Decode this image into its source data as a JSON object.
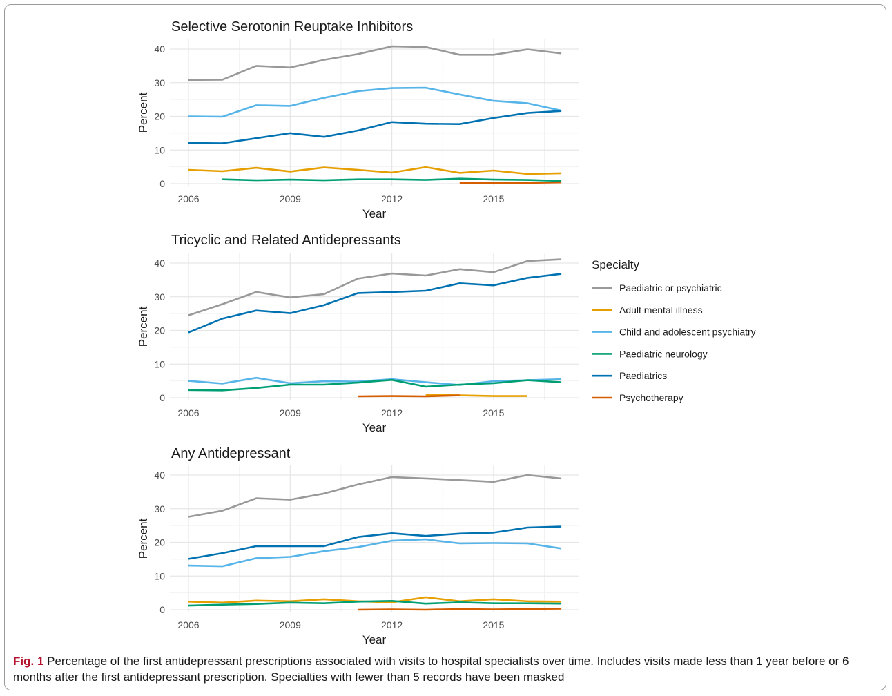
{
  "chart_data": [
    {
      "type": "line",
      "title": "Selective Serotonin Reuptake Inhibitors",
      "xlabel": "Year",
      "ylabel": "Percent",
      "xlim": [
        2006,
        2017
      ],
      "ylim": [
        0,
        40
      ],
      "x_ticks": [
        "2006",
        "2009",
        "2012",
        "2015"
      ],
      "y_ticks": [
        "0",
        "10",
        "20",
        "30",
        "40"
      ],
      "grid": true,
      "series": [
        {
          "name": "Paediatric or psychiatric",
          "x": [
            2006,
            2007,
            2008,
            2009,
            2010,
            2011,
            2012,
            2013,
            2014,
            2015,
            2016,
            2017
          ],
          "values": [
            30.8,
            30.9,
            35.0,
            34.5,
            36.8,
            38.5,
            40.8,
            40.6,
            38.3,
            38.3,
            39.9,
            38.7
          ]
        },
        {
          "name": "Adult mental illness",
          "x": [
            2006,
            2007,
            2008,
            2009,
            2010,
            2011,
            2012,
            2013,
            2014,
            2015,
            2016,
            2017
          ],
          "values": [
            4.1,
            3.7,
            4.7,
            3.6,
            4.8,
            4.1,
            3.3,
            4.9,
            3.2,
            3.9,
            2.9,
            3.1
          ]
        },
        {
          "name": "Child and adolescent psychiatry",
          "x": [
            2006,
            2007,
            2008,
            2009,
            2010,
            2011,
            2012,
            2013,
            2014,
            2015,
            2016,
            2017
          ],
          "values": [
            20.0,
            19.9,
            23.3,
            23.1,
            25.5,
            27.5,
            28.4,
            28.5,
            26.5,
            24.6,
            23.9,
            21.7
          ]
        },
        {
          "name": "Paediatric neurology",
          "x": [
            2007,
            2008,
            2009,
            2010,
            2011,
            2012,
            2013,
            2014,
            2015,
            2016,
            2017
          ],
          "values": [
            1.3,
            1.0,
            1.2,
            1.0,
            1.3,
            1.3,
            1.1,
            1.5,
            1.2,
            1.1,
            0.8
          ]
        },
        {
          "name": "Paediatrics",
          "x": [
            2006,
            2007,
            2008,
            2009,
            2010,
            2011,
            2012,
            2013,
            2014,
            2015,
            2016,
            2017
          ],
          "values": [
            12.1,
            12.0,
            13.5,
            15.0,
            13.9,
            15.8,
            18.3,
            17.8,
            17.7,
            19.5,
            21.0,
            21.6
          ]
        },
        {
          "name": "Psychotherapy",
          "x": [
            2014,
            2015,
            2016,
            2017
          ],
          "values": [
            0.2,
            0.2,
            0.2,
            0.4
          ]
        }
      ]
    },
    {
      "type": "line",
      "title": "Tricyclic and Related Antidepressants",
      "xlabel": "Year",
      "ylabel": "Percent",
      "xlim": [
        2006,
        2017
      ],
      "ylim": [
        0,
        40
      ],
      "x_ticks": [
        "2006",
        "2009",
        "2012",
        "2015"
      ],
      "y_ticks": [
        "0",
        "10",
        "20",
        "30",
        "40"
      ],
      "grid": true,
      "series": [
        {
          "name": "Paediatric or psychiatric",
          "x": [
            2006,
            2007,
            2008,
            2009,
            2010,
            2011,
            2012,
            2013,
            2014,
            2015,
            2016,
            2017
          ],
          "values": [
            24.5,
            27.8,
            31.4,
            29.8,
            30.8,
            35.4,
            36.9,
            36.3,
            38.2,
            37.3,
            40.6,
            41.1
          ]
        },
        {
          "name": "Adult mental illness",
          "x": [
            2013,
            2014,
            2015,
            2016
          ],
          "values": [
            0.9,
            0.7,
            0.5,
            0.5
          ]
        },
        {
          "name": "Child and adolescent psychiatry",
          "x": [
            2006,
            2007,
            2008,
            2009,
            2010,
            2011,
            2012,
            2013,
            2014,
            2015,
            2016,
            2017
          ],
          "values": [
            5.0,
            4.2,
            5.9,
            4.3,
            4.9,
            4.8,
            5.5,
            4.6,
            3.8,
            4.9,
            5.2,
            5.5
          ]
        },
        {
          "name": "Paediatric neurology",
          "x": [
            2006,
            2007,
            2008,
            2009,
            2010,
            2011,
            2012,
            2013,
            2014,
            2015,
            2016,
            2017
          ],
          "values": [
            2.3,
            2.2,
            2.9,
            3.9,
            3.9,
            4.5,
            5.3,
            3.3,
            3.9,
            4.3,
            5.2,
            4.6
          ]
        },
        {
          "name": "Paediatrics",
          "x": [
            2006,
            2007,
            2008,
            2009,
            2010,
            2011,
            2012,
            2013,
            2014,
            2015,
            2016,
            2017
          ],
          "values": [
            19.4,
            23.5,
            25.9,
            25.1,
            27.5,
            31.1,
            31.4,
            31.8,
            34.0,
            33.4,
            35.6,
            36.8
          ]
        },
        {
          "name": "Psychotherapy",
          "x": [
            2011,
            2012,
            2013,
            2014
          ],
          "values": [
            0.4,
            0.5,
            0.4,
            0.7
          ]
        }
      ]
    },
    {
      "type": "line",
      "title": "Any Antidepressant",
      "xlabel": "Year",
      "ylabel": "Percent",
      "xlim": [
        2006,
        2017
      ],
      "ylim": [
        0,
        40
      ],
      "x_ticks": [
        "2006",
        "2009",
        "2012",
        "2015"
      ],
      "y_ticks": [
        "0",
        "10",
        "20",
        "30",
        "40"
      ],
      "grid": true,
      "series": [
        {
          "name": "Paediatric or psychiatric",
          "x": [
            2006,
            2007,
            2008,
            2009,
            2010,
            2011,
            2012,
            2013,
            2014,
            2015,
            2016,
            2017
          ],
          "values": [
            27.6,
            29.4,
            33.1,
            32.7,
            34.5,
            37.2,
            39.4,
            39.0,
            38.5,
            38.0,
            40.0,
            39.0
          ]
        },
        {
          "name": "Adult mental illness",
          "x": [
            2006,
            2007,
            2008,
            2009,
            2010,
            2011,
            2012,
            2013,
            2014,
            2015,
            2016,
            2017
          ],
          "values": [
            2.4,
            2.1,
            2.7,
            2.5,
            3.1,
            2.5,
            2.2,
            3.7,
            2.5,
            3.1,
            2.5,
            2.4
          ]
        },
        {
          "name": "Child and adolescent psychiatry",
          "x": [
            2006,
            2007,
            2008,
            2009,
            2010,
            2011,
            2012,
            2013,
            2014,
            2015,
            2016,
            2017
          ],
          "values": [
            13.1,
            12.9,
            15.3,
            15.7,
            17.4,
            18.6,
            20.5,
            20.9,
            19.7,
            19.8,
            19.7,
            18.2
          ]
        },
        {
          "name": "Paediatric neurology",
          "x": [
            2006,
            2007,
            2008,
            2009,
            2010,
            2011,
            2012,
            2013,
            2014,
            2015,
            2016,
            2017
          ],
          "values": [
            1.2,
            1.5,
            1.7,
            2.1,
            1.9,
            2.4,
            2.6,
            1.8,
            2.2,
            1.9,
            1.9,
            1.8
          ]
        },
        {
          "name": "Paediatrics",
          "x": [
            2006,
            2007,
            2008,
            2009,
            2010,
            2011,
            2012,
            2013,
            2014,
            2015,
            2016,
            2017
          ],
          "values": [
            15.1,
            16.8,
            18.9,
            18.9,
            18.9,
            21.6,
            22.7,
            21.9,
            22.6,
            22.9,
            24.4,
            24.7
          ]
        },
        {
          "name": "Psychotherapy",
          "x": [
            2011,
            2012,
            2013,
            2014,
            2015,
            2016,
            2017
          ],
          "values": [
            0.0,
            0.1,
            0.0,
            0.2,
            0.1,
            0.2,
            0.3
          ]
        }
      ]
    }
  ],
  "legend": {
    "title": "Specialty",
    "placement": "right",
    "items": [
      {
        "label": "Paediatric or psychiatric",
        "color": "#999999"
      },
      {
        "label": "Adult mental illness",
        "color": "#E69F00"
      },
      {
        "label": "Child and adolescent psychiatry",
        "color": "#56B4E9"
      },
      {
        "label": "Paediatric neurology",
        "color": "#009E73"
      },
      {
        "label": "Paediatrics",
        "color": "#0072B2"
      },
      {
        "label": "Psychotherapy",
        "color": "#D55E00"
      }
    ]
  },
  "caption": {
    "label": "Fig. 1",
    "text": " Percentage of the first antidepressant prescriptions associated with visits to hospital specialists over time. Includes visits made less than 1 year before or 6 months after the first antidepressant prescription. Specialties with fewer than 5 records have been masked"
  }
}
